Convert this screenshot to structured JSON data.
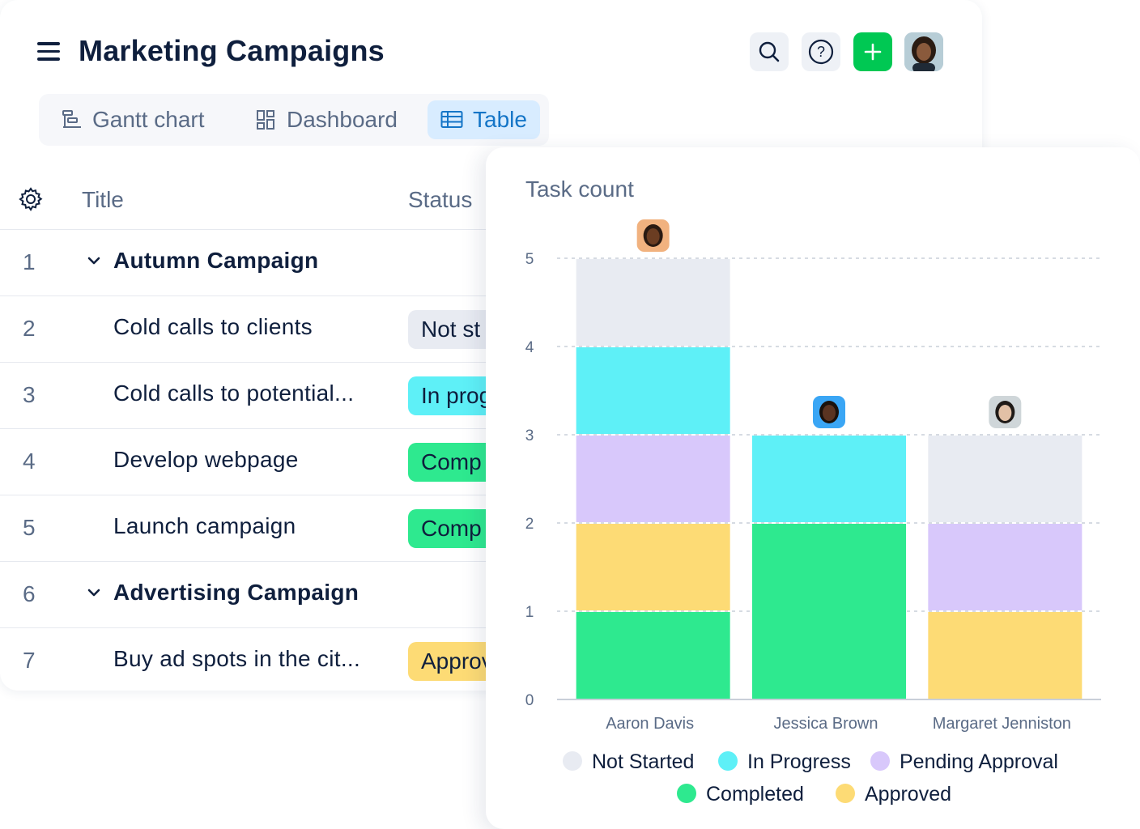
{
  "header": {
    "title": "Marketing Campaigns",
    "icons": [
      "menu-icon",
      "search-icon",
      "help-icon",
      "plus-icon",
      "user-avatar"
    ]
  },
  "tabs": [
    {
      "label": "Gantt chart",
      "icon": "gantt-icon",
      "active": false
    },
    {
      "label": "Dashboard",
      "icon": "dashboard-icon",
      "active": false
    },
    {
      "label": "Table",
      "icon": "table-icon",
      "active": true
    }
  ],
  "table": {
    "columns": [
      "Title",
      "Status"
    ],
    "rows": [
      {
        "num": "1",
        "title": "Autumn Campaign",
        "group": true,
        "status": ""
      },
      {
        "num": "2",
        "title": "Cold calls to clients",
        "group": false,
        "status": "Not st",
        "status_color": "#e8ebf2"
      },
      {
        "num": "3",
        "title": "Cold calls to potential...",
        "group": false,
        "status": "In prog",
        "status_color": "#5ef0f7"
      },
      {
        "num": "4",
        "title": "Develop webpage",
        "group": false,
        "status": "Comp",
        "status_color": "#2ee98f"
      },
      {
        "num": "5",
        "title": "Launch campaign",
        "group": false,
        "status": "Comp",
        "status_color": "#2ee98f"
      },
      {
        "num": "6",
        "title": "Advertising Campaign",
        "group": true,
        "status": ""
      },
      {
        "num": "7",
        "title": "Buy ad spots in the cit...",
        "group": false,
        "status": "Approv",
        "status_color": "#fddb75"
      }
    ]
  },
  "chart_data": {
    "type": "bar",
    "stacked": true,
    "title": "Task count",
    "categories": [
      "Aaron Davis",
      "Jessica Brown",
      "Margaret Jenniston"
    ],
    "ylim": [
      0,
      5
    ],
    "yticks": [
      "0",
      "1",
      "2",
      "3",
      "4",
      "5"
    ],
    "grid": true,
    "legend_position": "bottom",
    "series": [
      {
        "name": "Completed",
        "color": "#2ee98f",
        "values": [
          1,
          2,
          0
        ]
      },
      {
        "name": "Approved",
        "color": "#fddb75",
        "values": [
          1,
          0,
          1
        ]
      },
      {
        "name": "Pending Approval",
        "color": "#d8c8fb",
        "values": [
          1,
          0,
          1
        ]
      },
      {
        "name": "In Progress",
        "color": "#5ef0f7",
        "values": [
          1,
          1,
          0
        ]
      },
      {
        "name": "Not Started",
        "color": "#e8ebf2",
        "values": [
          1,
          0,
          1
        ]
      }
    ],
    "legend_order": [
      "Not Started",
      "In Progress",
      "Pending Approval",
      "Completed",
      "Approved"
    ]
  }
}
